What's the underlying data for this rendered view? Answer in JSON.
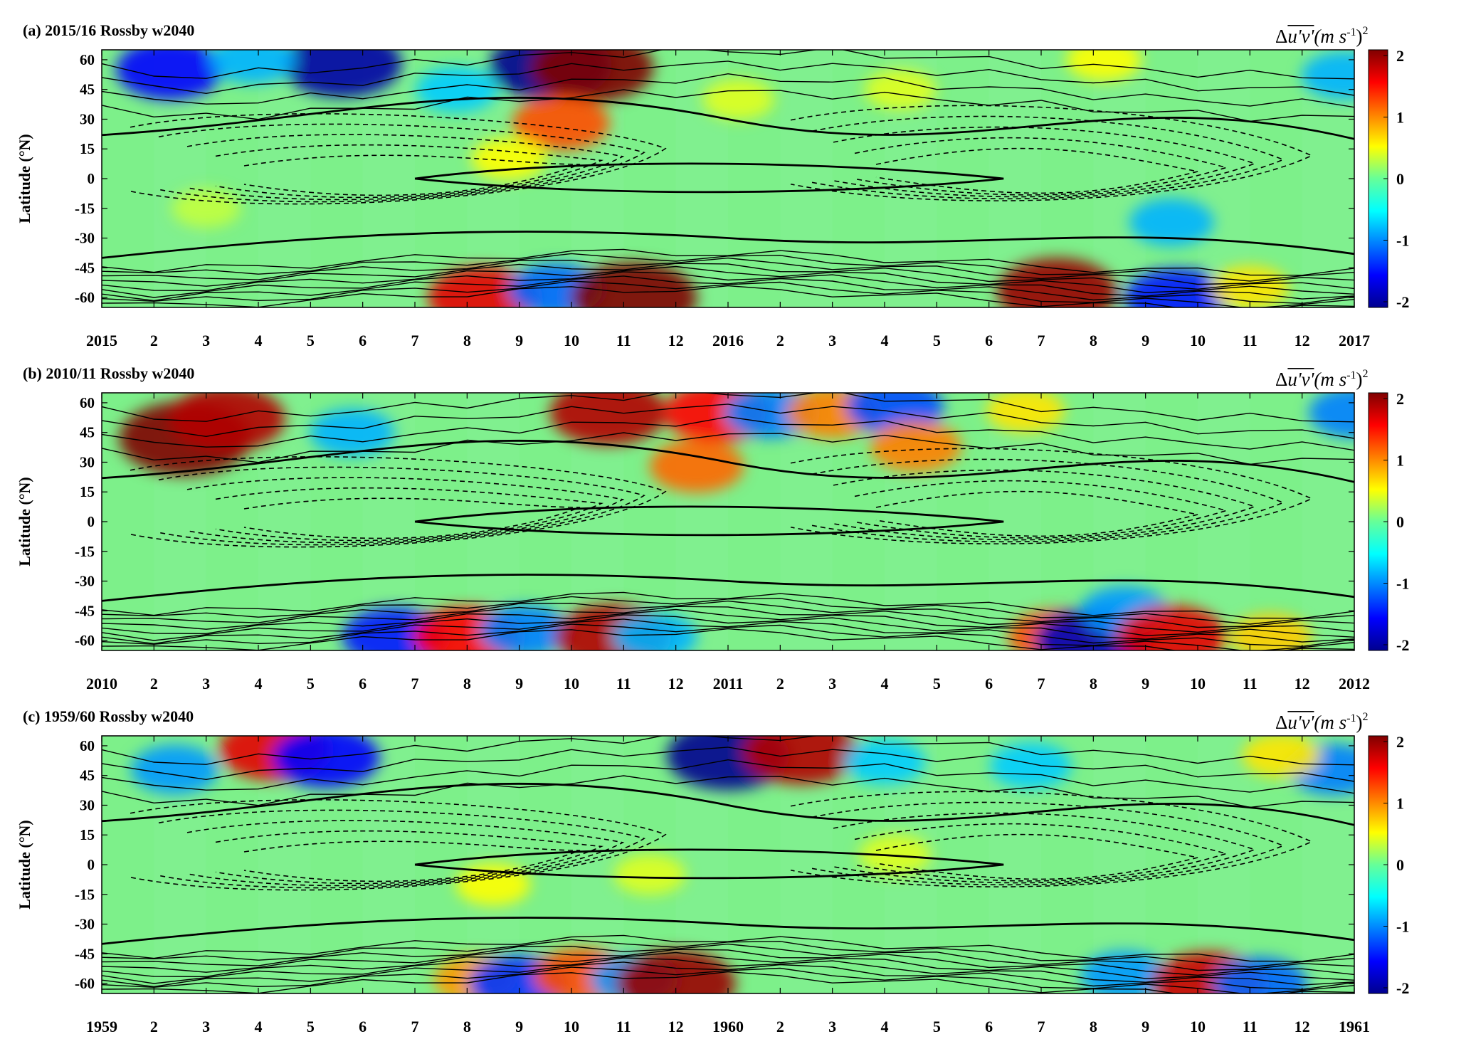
{
  "chart_data": [
    {
      "type": "heatmap",
      "title": "(a) 2015/16 Rossby w2040",
      "ylabel": "Latitude (°N)",
      "yticks": [
        "60",
        "45",
        "30",
        "15",
        "0",
        "-15",
        "-30",
        "-45",
        "-60"
      ],
      "ylim": [
        -65,
        65
      ],
      "xticks": [
        "2015",
        "2",
        "3",
        "4",
        "5",
        "6",
        "7",
        "8",
        "9",
        "10",
        "11",
        "12",
        "2016",
        "2",
        "3",
        "4",
        "5",
        "6",
        "7",
        "8",
        "9",
        "10",
        "11",
        "12",
        "2017"
      ],
      "xlim": [
        "2015-01",
        "2017-01"
      ],
      "colorbar": {
        "ticks": [
          "2",
          "1",
          "0",
          "-1",
          "-2"
        ],
        "range": [
          -2,
          2
        ],
        "unit": "(m s-1)2"
      },
      "contours": "solid (positive) and dashed (negative) zonal-mean zonal wind contours",
      "anomalies": [
        {
          "month": 1.3,
          "lat": 55,
          "value": -1.5
        },
        {
          "month": 4.6,
          "lat": 58,
          "value": -1.9
        },
        {
          "month": 8.6,
          "lat": 57,
          "value": -2.0
        },
        {
          "month": 9.4,
          "lat": 56,
          "value": 2.0
        },
        {
          "month": 8.8,
          "lat": 28,
          "value": 1.2
        },
        {
          "month": 6.8,
          "lat": 45,
          "value": -0.7
        },
        {
          "month": 2.9,
          "lat": 60,
          "value": -0.8
        },
        {
          "month": 7.8,
          "lat": 10,
          "value": 0.5
        },
        {
          "month": 7.3,
          "lat": -60,
          "value": 1.6
        },
        {
          "month": 8.7,
          "lat": -56,
          "value": -1.1
        },
        {
          "month": 10.2,
          "lat": -60,
          "value": 2.1
        },
        {
          "month": 18.3,
          "lat": -57,
          "value": 1.9
        },
        {
          "month": 20.6,
          "lat": -60,
          "value": -1.4
        },
        {
          "month": 20.5,
          "lat": -22,
          "value": -0.8
        },
        {
          "month": 22.0,
          "lat": -55,
          "value": 0.6
        },
        {
          "month": 12.2,
          "lat": 40,
          "value": 0.4
        },
        {
          "month": 15.3,
          "lat": 45,
          "value": 0.4
        },
        {
          "month": 23.8,
          "lat": 52,
          "value": -0.8
        },
        {
          "month": 19.2,
          "lat": 60,
          "value": 0.5
        },
        {
          "month": 2.0,
          "lat": -15,
          "value": 0.3
        }
      ]
    },
    {
      "type": "heatmap",
      "title": "(b) 2010/11 Rossby w2040",
      "ylabel": "Latitude (°N)",
      "yticks": [
        "60",
        "45",
        "30",
        "15",
        "0",
        "-15",
        "-30",
        "-45",
        "-60"
      ],
      "ylim": [
        -65,
        65
      ],
      "xticks": [
        "2010",
        "2",
        "3",
        "4",
        "5",
        "6",
        "7",
        "8",
        "9",
        "10",
        "11",
        "12",
        "2011",
        "2",
        "3",
        "4",
        "5",
        "6",
        "7",
        "8",
        "9",
        "10",
        "11",
        "12",
        "2012"
      ],
      "xlim": [
        "2010-01",
        "2012-01"
      ],
      "colorbar": {
        "ticks": [
          "2",
          "1",
          "0",
          "-1",
          "-2"
        ],
        "range": [
          -2,
          2
        ],
        "unit": "(m s-1)2"
      },
      "contours": "solid (positive) and dashed (negative) zonal-mean zonal wind contours",
      "anomalies": [
        {
          "month": 1.6,
          "lat": 42,
          "value": 2.3
        },
        {
          "month": 2.4,
          "lat": 52,
          "value": 1.8
        },
        {
          "month": 4.8,
          "lat": 45,
          "value": -0.8
        },
        {
          "month": 9.7,
          "lat": 55,
          "value": 1.8
        },
        {
          "month": 11.4,
          "lat": 28,
          "value": 1.1
        },
        {
          "month": 11.8,
          "lat": 55,
          "value": 1.5
        },
        {
          "month": 12.8,
          "lat": 55,
          "value": -1.0
        },
        {
          "month": 14.0,
          "lat": 55,
          "value": 1.0
        },
        {
          "month": 15.2,
          "lat": 58,
          "value": -1.2
        },
        {
          "month": 15.6,
          "lat": 38,
          "value": 1.0
        },
        {
          "month": 17.7,
          "lat": 56,
          "value": 0.6
        },
        {
          "month": 24.0,
          "lat": 55,
          "value": -1.0
        },
        {
          "month": 5.6,
          "lat": -58,
          "value": -1.4
        },
        {
          "month": 7.0,
          "lat": -58,
          "value": 1.5
        },
        {
          "month": 8.1,
          "lat": -55,
          "value": -1.0
        },
        {
          "month": 9.8,
          "lat": -58,
          "value": 1.8
        },
        {
          "month": 10.6,
          "lat": -58,
          "value": -0.8
        },
        {
          "month": 18.3,
          "lat": -58,
          "value": 1.2
        },
        {
          "month": 19.0,
          "lat": -60,
          "value": -1.8
        },
        {
          "month": 19.6,
          "lat": -45,
          "value": -0.9
        },
        {
          "month": 20.5,
          "lat": -58,
          "value": 1.6
        },
        {
          "month": 22.4,
          "lat": -58,
          "value": 0.7
        }
      ]
    },
    {
      "type": "heatmap",
      "title": "(c) 1959/60 Rossby w2040",
      "ylabel": "Latitude (°N)",
      "yticks": [
        "60",
        "45",
        "30",
        "15",
        "0",
        "-15",
        "-30",
        "-45",
        "-60"
      ],
      "ylim": [
        -65,
        65
      ],
      "xticks": [
        "1959",
        "2",
        "3",
        "4",
        "5",
        "6",
        "7",
        "8",
        "9",
        "10",
        "11",
        "12",
        "1960",
        "2",
        "3",
        "4",
        "5",
        "6",
        "7",
        "8",
        "9",
        "10",
        "11",
        "12",
        "1961"
      ],
      "xlim": [
        "1959-01",
        "1961-01"
      ],
      "colorbar": {
        "ticks": [
          "2",
          "1",
          "0",
          "-1",
          "-2"
        ],
        "range": [
          -2,
          2
        ],
        "unit": "(m s-1)2"
      },
      "contours": "solid (positive) and dashed (negative) zonal-mean zonal wind contours",
      "anomalies": [
        {
          "month": 1.4,
          "lat": 48,
          "value": -0.9
        },
        {
          "month": 3.3,
          "lat": 58,
          "value": 1.6
        },
        {
          "month": 4.3,
          "lat": 54,
          "value": -1.5
        },
        {
          "month": 12.0,
          "lat": 55,
          "value": -2.0
        },
        {
          "month": 13.4,
          "lat": 57,
          "value": 1.8
        },
        {
          "month": 15.0,
          "lat": 52,
          "value": -0.7
        },
        {
          "month": 17.8,
          "lat": 50,
          "value": -0.7
        },
        {
          "month": 23.6,
          "lat": 48,
          "value": -1.0
        },
        {
          "month": 22.6,
          "lat": 55,
          "value": 0.6
        },
        {
          "month": 7.2,
          "lat": -58,
          "value": 0.9
        },
        {
          "month": 8.0,
          "lat": -60,
          "value": -1.3
        },
        {
          "month": 9.2,
          "lat": -56,
          "value": 1.2
        },
        {
          "month": 10.2,
          "lat": -58,
          "value": -0.9
        },
        {
          "month": 11.0,
          "lat": -60,
          "value": 1.9
        },
        {
          "month": 19.6,
          "lat": -56,
          "value": -0.9
        },
        {
          "month": 21.2,
          "lat": -60,
          "value": 1.7
        },
        {
          "month": 22.2,
          "lat": -60,
          "value": -1.1
        },
        {
          "month": 7.5,
          "lat": -10,
          "value": 0.5
        },
        {
          "month": 10.5,
          "lat": -5,
          "value": 0.4
        },
        {
          "month": 15.2,
          "lat": 5,
          "value": 0.4
        }
      ]
    }
  ]
}
